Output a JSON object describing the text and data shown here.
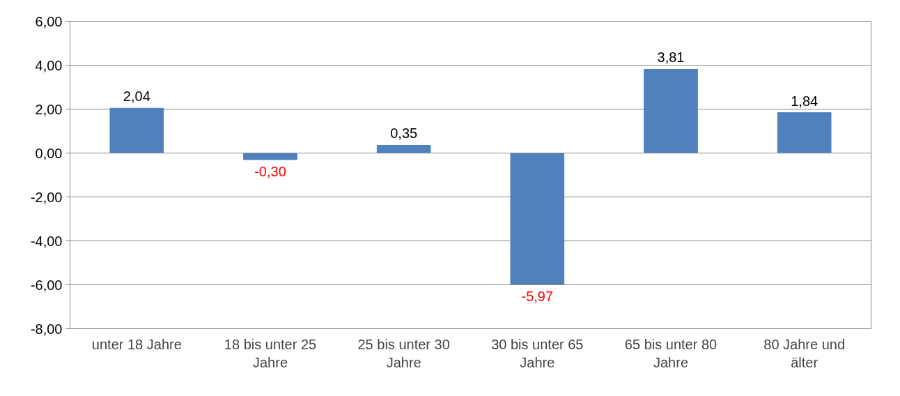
{
  "chart_data": {
    "type": "bar",
    "categories": [
      "unter 18 Jahre",
      "18 bis unter 25 Jahre",
      "25 bis unter 30 Jahre",
      "30 bis unter 65 Jahre",
      "65 bis unter 80 Jahre",
      "80 Jahre und älter"
    ],
    "values": [
      2.04,
      -0.3,
      0.35,
      -5.97,
      3.81,
      1.84
    ],
    "value_labels": [
      "2,04",
      "-0,30",
      "0,35",
      "-5,97",
      "3,81",
      "1,84"
    ],
    "color": "#4f81bd",
    "ylim": [
      -8,
      6
    ],
    "yticks": [
      {
        "value": 6,
        "label": "6,00"
      },
      {
        "value": 4,
        "label": "4,00"
      },
      {
        "value": 2,
        "label": "2,00"
      },
      {
        "value": 0,
        "label": "0,00"
      },
      {
        "value": -2,
        "label": "-2,00"
      },
      {
        "value": -4,
        "label": "-4,00"
      },
      {
        "value": -6,
        "label": "-6,00"
      },
      {
        "value": -8,
        "label": "-8,00"
      }
    ],
    "grid": "y"
  }
}
